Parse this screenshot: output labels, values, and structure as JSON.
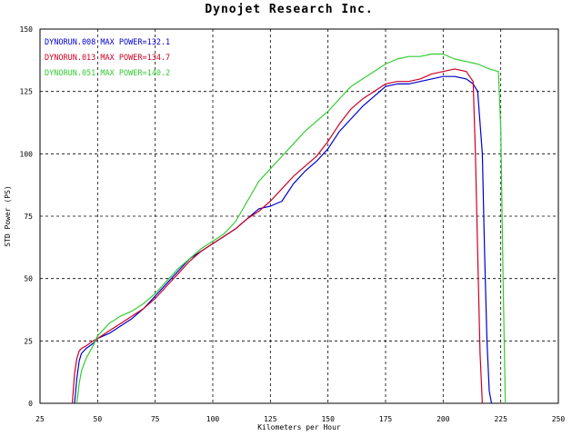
{
  "chart_data": {
    "type": "line",
    "title": "Dynojet  Research  Inc.",
    "xlabel": "Kilometers per Hour",
    "ylabel": "STD Power (PS)",
    "xlim": [
      25,
      250
    ],
    "ylim": [
      0,
      150
    ],
    "x_ticks": [
      "25",
      "50",
      "75",
      "100",
      "125",
      "150",
      "175",
      "200",
      "225",
      "250"
    ],
    "y_ticks": [
      "0",
      "25",
      "50",
      "75",
      "100",
      "125",
      "150"
    ],
    "grid": true,
    "legend_position": "top-left",
    "series": [
      {
        "name": "DYNORUN.008  MAX POWER=132.1",
        "color": "#0000cc",
        "x": [
          40,
          41,
          42,
          43,
          45,
          48,
          50,
          55,
          60,
          65,
          70,
          75,
          80,
          85,
          90,
          95,
          100,
          105,
          110,
          115,
          120,
          125,
          130,
          135,
          140,
          145,
          150,
          155,
          160,
          165,
          170,
          175,
          180,
          185,
          190,
          195,
          200,
          205,
          210,
          213,
          215,
          217,
          218,
          219,
          220,
          221
        ],
        "y": [
          0,
          10,
          17,
          20,
          22,
          24,
          26,
          28,
          31,
          34,
          38,
          43,
          48,
          53,
          58,
          61,
          64,
          67,
          70,
          74,
          78,
          79,
          81,
          88,
          93,
          97,
          102,
          109,
          114,
          119,
          123,
          127,
          128,
          128,
          129,
          130,
          131,
          131,
          130,
          128,
          125,
          100,
          60,
          25,
          5,
          0
        ]
      },
      {
        "name": "DYNORUN.013  MAX POWER=134.7",
        "color": "#cc0022",
        "x": [
          39,
          40,
          41,
          42,
          43,
          45,
          48,
          50,
          55,
          60,
          65,
          70,
          75,
          80,
          85,
          90,
          95,
          100,
          105,
          110,
          115,
          120,
          125,
          130,
          135,
          140,
          145,
          150,
          155,
          160,
          165,
          170,
          175,
          180,
          185,
          190,
          195,
          200,
          205,
          210,
          213,
          214,
          215,
          216,
          217
        ],
        "y": [
          0,
          12,
          18,
          21,
          22,
          23,
          25,
          26,
          29,
          32,
          35,
          38,
          42,
          47,
          52,
          57,
          61,
          64,
          67,
          70,
          74,
          77,
          81,
          86,
          91,
          95,
          99,
          105,
          112,
          118,
          122,
          125,
          128,
          129,
          129,
          130,
          132,
          133,
          134,
          133,
          129,
          100,
          60,
          20,
          0
        ]
      },
      {
        "name": "DYNORUN.051  MAX POWER=140.2",
        "color": "#33cc33",
        "x": [
          41,
          42,
          43,
          45,
          48,
          50,
          55,
          60,
          65,
          70,
          75,
          80,
          85,
          90,
          95,
          100,
          105,
          110,
          115,
          120,
          125,
          130,
          135,
          140,
          145,
          150,
          155,
          160,
          165,
          170,
          175,
          180,
          185,
          190,
          195,
          200,
          205,
          210,
          215,
          220,
          224,
          225,
          226,
          227
        ],
        "y": [
          0,
          8,
          13,
          18,
          23,
          27,
          32,
          35,
          37,
          40,
          44,
          49,
          54,
          58,
          62,
          65,
          68,
          73,
          81,
          89,
          94,
          99,
          104,
          109,
          113,
          117,
          122,
          127,
          130,
          133,
          136,
          138,
          139,
          139,
          140,
          140,
          138,
          137,
          136,
          134,
          133,
          110,
          50,
          0
        ]
      }
    ]
  }
}
